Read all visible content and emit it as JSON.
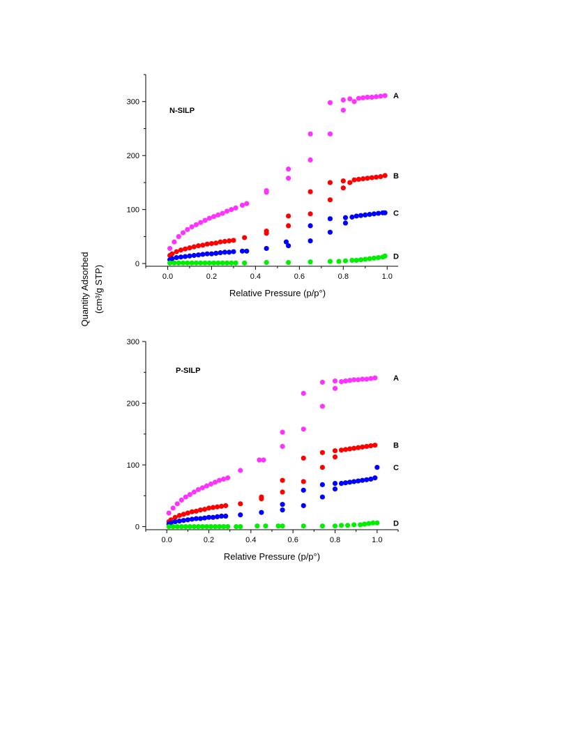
{
  "figure": {
    "ylabel_line1": "Quantity Adsorbed",
    "ylabel_line2": "(cm³/g STP)"
  },
  "chart_data": [
    {
      "type": "scatter",
      "title": "N-SILP",
      "xlabel": "Relative Pressure (p/p°)",
      "ylabel": "Quantity Adsorbed (cm³/g STP)",
      "xlim": [
        -0.1,
        1.05
      ],
      "ylim": [
        -5,
        350
      ],
      "xticks": [
        "0.0",
        "0.2",
        "0.4",
        "0.6",
        "0.8",
        "1.0"
      ],
      "yticks": [
        "0",
        "100",
        "200",
        "300"
      ],
      "grid": false,
      "series": [
        {
          "name": "A",
          "color": "#ff33ff",
          "x": [
            0.01,
            0.03,
            0.05,
            0.07,
            0.09,
            0.11,
            0.13,
            0.15,
            0.17,
            0.19,
            0.21,
            0.23,
            0.25,
            0.27,
            0.29,
            0.31,
            0.34,
            0.36,
            0.45,
            0.45,
            0.55,
            0.55,
            0.65,
            0.65,
            0.74,
            0.74,
            0.8,
            0.8,
            0.83,
            0.85,
            0.87,
            0.89,
            0.91,
            0.93,
            0.95,
            0.97,
            0.99
          ],
          "y": [
            28,
            40,
            50,
            57,
            63,
            68,
            72,
            76,
            80,
            84,
            87,
            90,
            93,
            97,
            100,
            103,
            108,
            111,
            135,
            132,
            175,
            158,
            240,
            192,
            240,
            298,
            284,
            303,
            305,
            300,
            306,
            307,
            308,
            308,
            309,
            310,
            311
          ]
        },
        {
          "name": "B",
          "color": "#ff0000",
          "x": [
            0.01,
            0.02,
            0.04,
            0.06,
            0.08,
            0.1,
            0.12,
            0.14,
            0.16,
            0.18,
            0.2,
            0.22,
            0.24,
            0.26,
            0.28,
            0.3,
            0.35,
            0.45,
            0.45,
            0.55,
            0.55,
            0.65,
            0.65,
            0.74,
            0.74,
            0.8,
            0.8,
            0.83,
            0.85,
            0.87,
            0.89,
            0.91,
            0.93,
            0.95,
            0.97,
            0.99
          ],
          "y": [
            15,
            18,
            22,
            25,
            27,
            29,
            31,
            33,
            34,
            36,
            37,
            38,
            40,
            41,
            42,
            43,
            48,
            60,
            56,
            88,
            70,
            133,
            92,
            118,
            150,
            140,
            153,
            150,
            155,
            156,
            157,
            158,
            159,
            160,
            161,
            163
          ]
        },
        {
          "name": "C",
          "color": "#0000ff",
          "x": [
            0.01,
            0.02,
            0.04,
            0.06,
            0.08,
            0.1,
            0.12,
            0.14,
            0.16,
            0.18,
            0.2,
            0.22,
            0.24,
            0.26,
            0.28,
            0.3,
            0.34,
            0.36,
            0.45,
            0.54,
            0.55,
            0.65,
            0.65,
            0.74,
            0.74,
            0.81,
            0.81,
            0.84,
            0.86,
            0.88,
            0.9,
            0.92,
            0.94,
            0.96,
            0.98,
            0.99
          ],
          "y": [
            7,
            9,
            11,
            12,
            13,
            14,
            15,
            16,
            17,
            18,
            18,
            19,
            20,
            21,
            21,
            22,
            23,
            23,
            28,
            40,
            33,
            70,
            42,
            58,
            83,
            75,
            85,
            86,
            88,
            89,
            90,
            91,
            92,
            93,
            94,
            94
          ]
        },
        {
          "name": "D",
          "color": "#00ee00",
          "x": [
            0.01,
            0.03,
            0.05,
            0.07,
            0.09,
            0.11,
            0.13,
            0.15,
            0.17,
            0.19,
            0.21,
            0.23,
            0.25,
            0.27,
            0.29,
            0.31,
            0.35,
            0.45,
            0.55,
            0.65,
            0.74,
            0.78,
            0.81,
            0.84,
            0.86,
            0.88,
            0.9,
            0.92,
            0.94,
            0.96,
            0.98,
            0.99
          ],
          "y": [
            1,
            1,
            1,
            1,
            1,
            1,
            1,
            1,
            1,
            1,
            1,
            1,
            1,
            1,
            1,
            1,
            1,
            2,
            2,
            3,
            4,
            4,
            5,
            6,
            6,
            7,
            8,
            9,
            10,
            11,
            12,
            14
          ]
        }
      ]
    },
    {
      "type": "scatter",
      "title": "P-SILP",
      "xlabel": "Relative Pressure (p/p°)",
      "ylabel": "Quantity Adsorbed (cm³/g STP)",
      "xlim": [
        -0.1,
        1.1
      ],
      "ylim": [
        -5,
        300
      ],
      "xticks": [
        "0.0",
        "0.2",
        "0.4",
        "0.6",
        "0.8",
        "1.0"
      ],
      "yticks": [
        "0",
        "100",
        "200",
        "300"
      ],
      "grid": false,
      "series": [
        {
          "name": "A",
          "color": "#ff33ff",
          "x": [
            0.01,
            0.03,
            0.05,
            0.07,
            0.09,
            0.11,
            0.13,
            0.15,
            0.17,
            0.19,
            0.21,
            0.23,
            0.25,
            0.27,
            0.29,
            0.35,
            0.44,
            0.46,
            0.55,
            0.55,
            0.65,
            0.65,
            0.74,
            0.74,
            0.8,
            0.8,
            0.83,
            0.85,
            0.87,
            0.89,
            0.91,
            0.93,
            0.95,
            0.97,
            0.99
          ],
          "y": [
            22,
            30,
            37,
            43,
            48,
            52,
            56,
            60,
            63,
            66,
            69,
            72,
            75,
            77,
            79,
            91,
            108,
            108,
            153,
            130,
            216,
            158,
            234,
            195,
            236,
            224,
            235,
            236,
            237,
            238,
            238,
            239,
            239,
            240,
            241
          ]
        },
        {
          "name": "B",
          "color": "#ff0000",
          "x": [
            0.01,
            0.02,
            0.04,
            0.06,
            0.08,
            0.1,
            0.12,
            0.14,
            0.16,
            0.18,
            0.2,
            0.22,
            0.24,
            0.26,
            0.28,
            0.35,
            0.45,
            0.45,
            0.55,
            0.55,
            0.65,
            0.65,
            0.74,
            0.74,
            0.8,
            0.8,
            0.83,
            0.85,
            0.87,
            0.89,
            0.91,
            0.93,
            0.95,
            0.97,
            0.99
          ],
          "y": [
            8,
            11,
            15,
            18,
            20,
            22,
            24,
            25,
            27,
            28,
            30,
            31,
            32,
            33,
            34,
            37,
            48,
            45,
            75,
            56,
            111,
            73,
            96,
            120,
            113,
            123,
            124,
            125,
            126,
            127,
            128,
            129,
            130,
            131,
            132
          ]
        },
        {
          "name": "C",
          "color": "#0000ff",
          "x": [
            0.01,
            0.02,
            0.04,
            0.06,
            0.08,
            0.1,
            0.12,
            0.14,
            0.16,
            0.18,
            0.2,
            0.22,
            0.24,
            0.26,
            0.28,
            0.35,
            0.45,
            0.55,
            0.55,
            0.65,
            0.65,
            0.74,
            0.74,
            0.8,
            0.8,
            0.83,
            0.85,
            0.87,
            0.89,
            0.91,
            0.93,
            0.95,
            0.97,
            0.99,
            1.0
          ],
          "y": [
            4,
            6,
            8,
            9,
            10,
            11,
            12,
            13,
            13,
            14,
            15,
            15,
            16,
            17,
            17,
            19,
            23,
            36,
            27,
            59,
            34,
            48,
            68,
            61,
            70,
            70,
            71,
            72,
            73,
            74,
            75,
            76,
            77,
            79,
            96
          ]
        },
        {
          "name": "D",
          "color": "#00ee00",
          "x": [
            0.01,
            0.03,
            0.05,
            0.07,
            0.09,
            0.11,
            0.13,
            0.15,
            0.17,
            0.19,
            0.21,
            0.23,
            0.25,
            0.27,
            0.29,
            0.33,
            0.35,
            0.43,
            0.47,
            0.53,
            0.55,
            0.65,
            0.74,
            0.8,
            0.83,
            0.86,
            0.89,
            0.92,
            0.94,
            0.96,
            0.98,
            1.0
          ],
          "y": [
            0,
            0,
            0,
            0,
            0,
            0,
            0,
            0,
            0,
            0,
            0,
            0,
            0,
            0,
            0,
            0,
            0,
            1,
            1,
            1,
            1,
            1,
            1,
            1,
            2,
            2,
            3,
            3,
            4,
            5,
            6,
            6
          ]
        }
      ]
    }
  ]
}
